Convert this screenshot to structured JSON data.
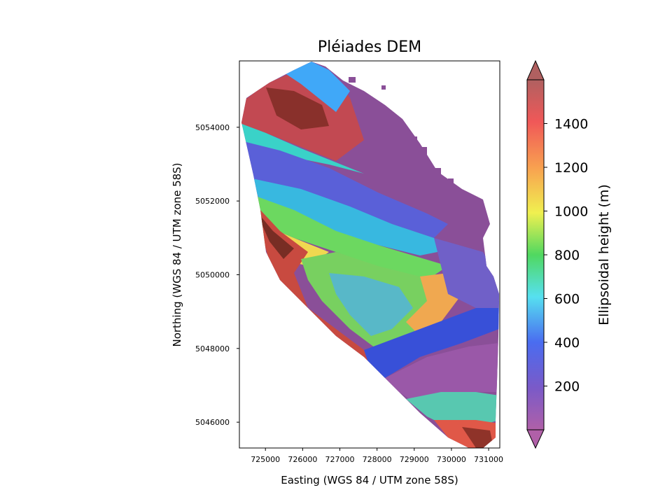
{
  "chart_data": {
    "type": "heatmap",
    "title": "Pléiades DEM",
    "xlabel": "Easting (WGS 84 / UTM zone 58S)",
    "ylabel": "Northing (WGS 84 / UTM zone 58S)",
    "colorbar_label": "Ellipsoidal height (m)",
    "colormap": "jet with purple low end, semi-transparent over hillshade",
    "xlim": [
      724300,
      731300
    ],
    "ylim": [
      5045300,
      5055800
    ],
    "xticks": [
      725000,
      726000,
      727000,
      728000,
      729000,
      730000,
      731000
    ],
    "xtick_labels": [
      "725000",
      "726000",
      "727000",
      "728000",
      "729000",
      "730000",
      "731000"
    ],
    "yticks": [
      5046000,
      5048000,
      5050000,
      5052000,
      5054000
    ],
    "ytick_labels": [
      "5046000",
      "5048000",
      "5050000",
      "5052000",
      "5054000"
    ],
    "colorbar_range": [
      0,
      1600
    ],
    "colorbar_ticks": [
      200,
      400,
      600,
      800,
      1000,
      1200,
      1400
    ],
    "colorbar_tick_labels": [
      "200",
      "400",
      "600",
      "800",
      "1000",
      "1200",
      "1400"
    ],
    "colorbar_extend": "both",
    "grid": false
  }
}
